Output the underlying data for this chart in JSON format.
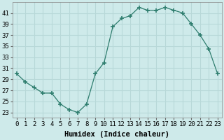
{
  "x": [
    0,
    1,
    2,
    3,
    4,
    5,
    6,
    7,
    8,
    9,
    10,
    11,
    12,
    13,
    14,
    15,
    16,
    17,
    18,
    19,
    20,
    21,
    22,
    23
  ],
  "y": [
    30,
    28.5,
    27.5,
    26.5,
    26.5,
    24.5,
    23.5,
    23,
    24.5,
    30,
    32,
    38.5,
    40,
    40.5,
    42,
    41.5,
    41.5,
    42,
    41.5,
    41,
    39,
    37,
    34.5,
    30
  ],
  "line_color": "#2e7d6e",
  "background_color": "#ceeaea",
  "grid_color": "#b8d8d8",
  "xlabel": "Humidex (Indice chaleur)",
  "xlim": [
    -0.5,
    23.5
  ],
  "ylim": [
    22,
    43
  ],
  "yticks": [
    23,
    25,
    27,
    29,
    31,
    33,
    35,
    37,
    39,
    41
  ],
  "xticks": [
    0,
    1,
    2,
    3,
    4,
    5,
    6,
    7,
    8,
    9,
    10,
    11,
    12,
    13,
    14,
    15,
    16,
    17,
    18,
    19,
    20,
    21,
    22,
    23
  ],
  "tick_fontsize": 6.5,
  "xlabel_fontsize": 7.5
}
